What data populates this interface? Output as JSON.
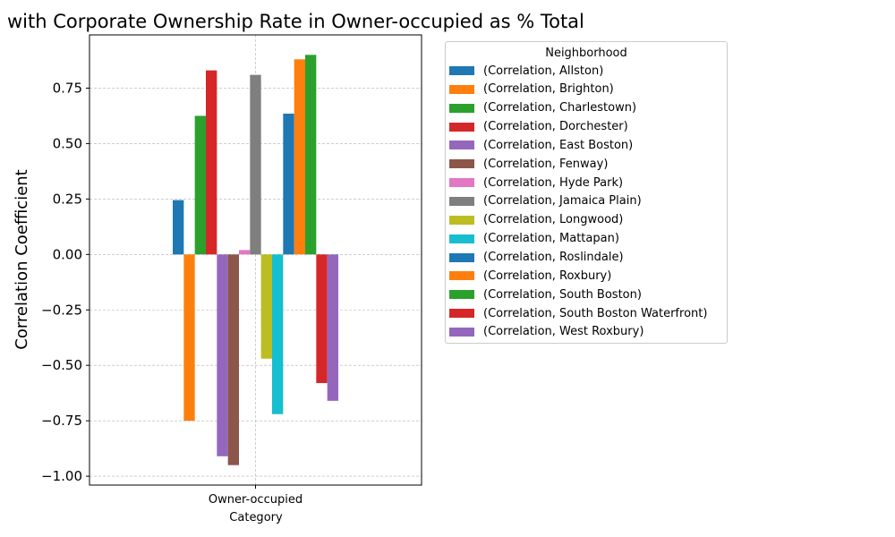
{
  "chart_data": {
    "type": "bar",
    "title": "with Corporate Ownership Rate in Owner-occupied as % Total",
    "xlabel": "Category",
    "ylabel": "Correlation Coefficient",
    "categories": [
      "Owner-occupied"
    ],
    "ylim": [
      -1.04,
      0.99
    ],
    "yticks": [
      -1.0,
      -0.75,
      -0.5,
      -0.25,
      0.0,
      0.25,
      0.5,
      0.75
    ],
    "ytick_labels": [
      "−1.00",
      "−0.75",
      "−0.50",
      "−0.25",
      "0.00",
      "0.25",
      "0.50",
      "0.75"
    ],
    "grid": true,
    "legend_title": "Neighborhood",
    "legend_placement": "outside-right",
    "series": [
      {
        "name": "(Correlation, Allston)",
        "values": [
          0.245
        ],
        "color": "#1f77b4"
      },
      {
        "name": "(Correlation, Brighton)",
        "values": [
          -0.75
        ],
        "color": "#ff7f0e"
      },
      {
        "name": "(Correlation, Charlestown)",
        "values": [
          0.625
        ],
        "color": "#2ca02c"
      },
      {
        "name": "(Correlation, Dorchester)",
        "values": [
          0.83
        ],
        "color": "#d62728"
      },
      {
        "name": "(Correlation, East Boston)",
        "values": [
          -0.91
        ],
        "color": "#9467bd"
      },
      {
        "name": "(Correlation, Fenway)",
        "values": [
          -0.95
        ],
        "color": "#8c564b"
      },
      {
        "name": "(Correlation, Hyde Park)",
        "values": [
          0.02
        ],
        "color": "#e377c2"
      },
      {
        "name": "(Correlation, Jamaica Plain)",
        "values": [
          0.81
        ],
        "color": "#7f7f7f"
      },
      {
        "name": "(Correlation, Longwood)",
        "values": [
          -0.47
        ],
        "color": "#bcbd22"
      },
      {
        "name": "(Correlation, Mattapan)",
        "values": [
          -0.72
        ],
        "color": "#17becf"
      },
      {
        "name": "(Correlation, Roslindale)",
        "values": [
          0.635
        ],
        "color": "#1f77b4"
      },
      {
        "name": "(Correlation, Roxbury)",
        "values": [
          0.88
        ],
        "color": "#ff7f0e"
      },
      {
        "name": "(Correlation, South Boston)",
        "values": [
          0.9
        ],
        "color": "#2ca02c"
      },
      {
        "name": "(Correlation, South Boston Waterfront)",
        "values": [
          -0.58
        ],
        "color": "#d62728"
      },
      {
        "name": "(Correlation, West Roxbury)",
        "values": [
          -0.66
        ],
        "color": "#9467bd"
      }
    ]
  }
}
